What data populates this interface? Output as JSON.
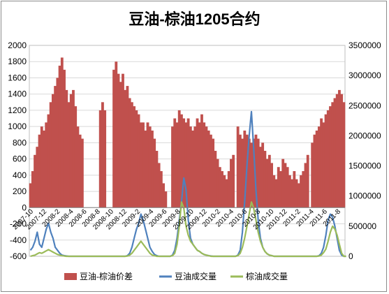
{
  "chart_data": {
    "type": "area",
    "title": "豆油-棕油1205合约",
    "x_tick_labels": [
      "2007-10",
      "2007-12",
      "2008-2",
      "2008-4",
      "2008-6",
      "2008-8",
      "2008-10",
      "2008-12",
      "2009-2",
      "2009-4",
      "2009-6",
      "2009-8",
      "2009-10",
      "2009-12",
      "2010-2",
      "2010-4",
      "2010-6",
      "2010-8",
      "2010-10",
      "2010-12",
      "2011-2",
      "2011-4",
      "2011-6",
      "2011-8"
    ],
    "y_left_ticks": [
      -600,
      -400,
      -200,
      0,
      200,
      400,
      600,
      800,
      1000,
      1200,
      1400,
      1600,
      1800,
      2000
    ],
    "y_right_ticks": [
      "0",
      "500000",
      "1000000",
      "1500000",
      "2000000",
      "2500000",
      "3000000",
      "3500000"
    ],
    "ylim_left": [
      -600,
      2000
    ],
    "ylim_right": [
      0,
      3500000
    ],
    "grid": true,
    "legend_position": "bottom",
    "series": [
      {
        "name": "豆油-棕油价差",
        "axis": "left",
        "color": "#c0504d",
        "values": [
          300,
          450,
          650,
          750,
          900,
          1000,
          950,
          1050,
          1150,
          1300,
          1400,
          1500,
          1600,
          1750,
          1850,
          1700,
          1450,
          1300,
          1400,
          1450,
          1250,
          1000,
          900,
          850,
          null,
          null,
          null,
          null,
          null,
          null,
          null,
          1200,
          1300,
          1200,
          null,
          null,
          null,
          1700,
          1800,
          1650,
          1550,
          1650,
          1450,
          1500,
          1350,
          1300,
          1250,
          1200,
          1150,
          1050,
          1050,
          950,
          1050,
          1000,
          950,
          850,
          700,
          550,
          450,
          300,
          200,
          null,
          null,
          1000,
          1100,
          1050,
          1200,
          1150,
          1100,
          1050,
          1100,
          1000,
          950,
          1000,
          1100,
          1050,
          1150,
          1050,
          1000,
          950,
          900,
          850,
          700,
          600,
          500,
          450,
          400,
          350,
          450,
          600,
          650,
          null,
          1000,
          900,
          850,
          950,
          900,
          850,
          800,
          850,
          900,
          850,
          750,
          800,
          700,
          600,
          650,
          550,
          400,
          350,
          500,
          450,
          600,
          550,
          500,
          400,
          350,
          450,
          350,
          300,
          400,
          450,
          550,
          650,
          null,
          800,
          900,
          950,
          1000,
          1100,
          1050,
          1150,
          1200,
          1250,
          1300,
          1350,
          1400,
          1450,
          1400,
          1300
        ]
      },
      {
        "name": "豆油成交量",
        "axis": "right",
        "color": "#4f81bd",
        "values": [
          100000,
          150000,
          250000,
          400000,
          200000,
          150000,
          300000,
          450000,
          550000,
          400000,
          300000,
          150000,
          100000,
          50000,
          20000,
          10000,
          5000,
          0,
          0,
          0,
          0,
          0,
          0,
          0,
          0,
          0,
          0,
          0,
          0,
          0,
          0,
          0,
          0,
          0,
          0,
          0,
          0,
          0,
          0,
          0,
          0,
          0,
          0,
          10000,
          50000,
          150000,
          300000,
          450000,
          550000,
          700000,
          600000,
          450000,
          300000,
          150000,
          80000,
          30000,
          10000,
          0,
          0,
          0,
          0,
          0,
          0,
          20000,
          100000,
          300000,
          600000,
          900000,
          1300000,
          1100000,
          600000,
          300000,
          200000,
          150000,
          100000,
          80000,
          50000,
          30000,
          20000,
          10000,
          5000,
          0,
          0,
          0,
          0,
          0,
          0,
          0,
          0,
          0,
          0,
          0,
          20000,
          100000,
          400000,
          900000,
          1500000,
          2000000,
          2400000,
          1800000,
          1100000,
          600000,
          300000,
          150000,
          80000,
          40000,
          20000,
          10000,
          0,
          0,
          0,
          0,
          0,
          0,
          0,
          0,
          0,
          0,
          0,
          0,
          0,
          0,
          0,
          0,
          0,
          0,
          0,
          0,
          10000,
          50000,
          150000,
          350000,
          600000,
          700000,
          650000,
          500000,
          300000,
          100000,
          20000,
          0,
          0
        ]
      },
      {
        "name": "棕油成交量",
        "axis": "right",
        "color": "#9bbb59",
        "values": [
          0,
          10000,
          20000,
          40000,
          60000,
          50000,
          70000,
          90000,
          110000,
          90000,
          70000,
          50000,
          30000,
          20000,
          10000,
          5000,
          0,
          0,
          0,
          0,
          0,
          0,
          0,
          0,
          0,
          0,
          0,
          0,
          0,
          0,
          0,
          0,
          0,
          0,
          0,
          0,
          0,
          0,
          0,
          0,
          0,
          0,
          0,
          5000,
          20000,
          50000,
          100000,
          150000,
          200000,
          250000,
          200000,
          150000,
          100000,
          50000,
          20000,
          10000,
          0,
          0,
          0,
          0,
          0,
          0,
          0,
          10000,
          50000,
          200000,
          500000,
          900000,
          800000,
          500000,
          350000,
          250000,
          200000,
          150000,
          100000,
          80000,
          50000,
          30000,
          20000,
          10000,
          0,
          0,
          0,
          0,
          0,
          0,
          0,
          0,
          0,
          0,
          0,
          0,
          10000,
          50000,
          150000,
          300000,
          500000,
          700000,
          900000,
          800000,
          600000,
          400000,
          250000,
          150000,
          80000,
          40000,
          20000,
          10000,
          0,
          0,
          0,
          0,
          0,
          0,
          0,
          0,
          0,
          0,
          0,
          0,
          0,
          0,
          0,
          0,
          0,
          0,
          0,
          0,
          5000,
          20000,
          60000,
          120000,
          250000,
          400000,
          500000,
          450000,
          350000,
          200000,
          50000,
          0,
          0
        ]
      }
    ]
  }
}
